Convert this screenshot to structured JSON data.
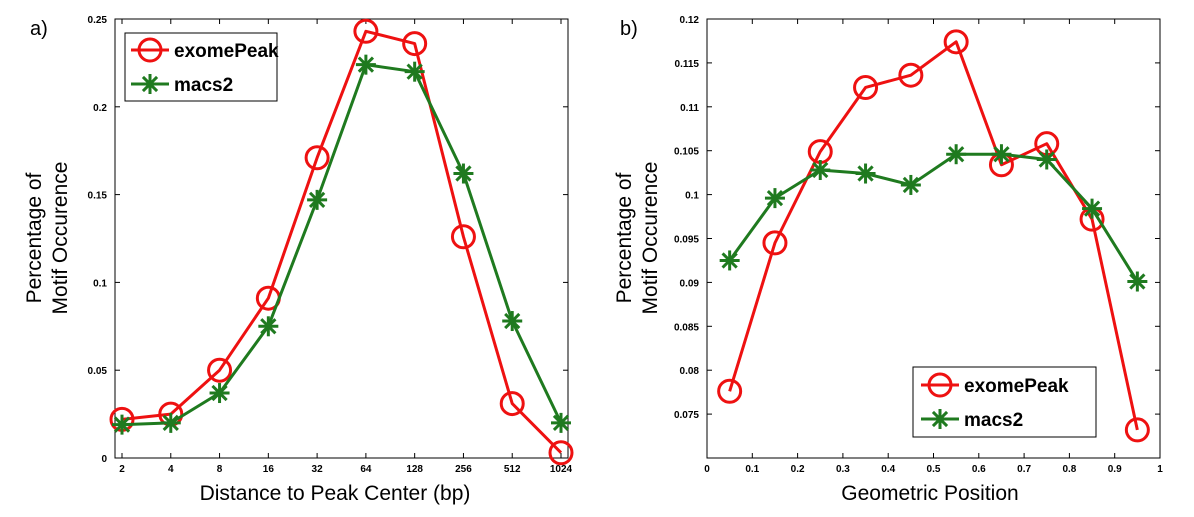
{
  "chart_data": [
    {
      "type": "line",
      "panel_label": "a)",
      "title": "",
      "xlabel": "Distance to Peak Center (bp)",
      "ylabel": [
        "Percentage of",
        "Motif Occurence"
      ],
      "categories": [
        "2",
        "4",
        "8",
        "16",
        "32",
        "64",
        "128",
        "256",
        "512",
        "1024"
      ],
      "ylim": [
        0,
        0.25
      ],
      "yticks": [
        0,
        0.05,
        0.1,
        0.15,
        0.2,
        0.25
      ],
      "ytick_labels": [
        "0",
        "0.05",
        "0.1",
        "0.15",
        "0.2",
        "0.25"
      ],
      "legend_position": "top-left",
      "series": [
        {
          "name": "exomePeak",
          "color": "#ee1111",
          "marker": "circle",
          "values": [
            0.022,
            0.025,
            0.05,
            0.091,
            0.171,
            0.243,
            0.236,
            0.126,
            0.031,
            0.003
          ]
        },
        {
          "name": "macs2",
          "color": "#1f7a1f",
          "marker": "asterisk",
          "values": [
            0.019,
            0.02,
            0.037,
            0.075,
            0.147,
            0.224,
            0.22,
            0.162,
            0.078,
            0.02
          ]
        }
      ]
    },
    {
      "type": "line",
      "panel_label": "b)",
      "title": "",
      "xlabel": "Geometric Position",
      "ylabel": [
        "Percentage of",
        "Motif Occurence"
      ],
      "xlim": [
        0,
        1
      ],
      "xticks": [
        0,
        0.1,
        0.2,
        0.3,
        0.4,
        0.5,
        0.6,
        0.7,
        0.8,
        0.9,
        1
      ],
      "xtick_labels": [
        "0",
        "0.1",
        "0.2",
        "0.3",
        "0.4",
        "0.5",
        "0.6",
        "0.7",
        "0.8",
        "0.9",
        "1"
      ],
      "ylim": [
        0.07,
        0.12
      ],
      "yticks": [
        0.075,
        0.08,
        0.085,
        0.09,
        0.095,
        0.1,
        0.105,
        0.11,
        0.115,
        0.12
      ],
      "ytick_labels": [
        "0.075",
        "0.08",
        "0.085",
        "0.09",
        "0.095",
        "0.1",
        "0.105",
        "0.11",
        "0.115",
        "0.12"
      ],
      "legend_position": "bottom-right",
      "x": [
        0.05,
        0.15,
        0.25,
        0.35,
        0.45,
        0.55,
        0.65,
        0.75,
        0.85,
        0.95
      ],
      "series": [
        {
          "name": "exomePeak",
          "color": "#ee1111",
          "marker": "circle",
          "values": [
            0.0776,
            0.0945,
            0.1049,
            0.1122,
            0.1136,
            0.1174,
            0.1034,
            0.1058,
            0.0972,
            0.0732
          ]
        },
        {
          "name": "macs2",
          "color": "#1f7a1f",
          "marker": "asterisk",
          "values": [
            0.0925,
            0.0996,
            0.1028,
            0.1024,
            0.1011,
            0.1046,
            0.1046,
            0.104,
            0.0984,
            0.0901
          ]
        }
      ]
    }
  ]
}
